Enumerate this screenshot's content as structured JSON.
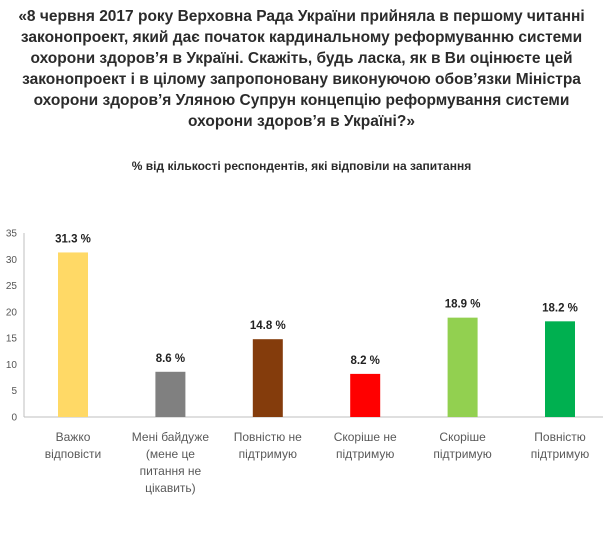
{
  "chart_data": {
    "type": "bar",
    "title": "«8 червня 2017 року Верховна Рада України прийняла в першому читанні законопроект, який дає початок кардинальному реформуванню системи охорони здоров’я в Україні. Скажіть, будь ласка, як в Ви оцінюєте цей законопроект і в цілому запропоновану виконуючою обов’язки Міністра охорони здоров’я Уляною Супрун концепцію реформування системи охорони здоров’я в Україні?»",
    "subtitle": "% від кількості респондентів, які відповіли на запитання",
    "categories": [
      [
        "Важко",
        "відповісти"
      ],
      [
        "Мені байдуже",
        "(мене це",
        "питання не",
        "цікавить)"
      ],
      [
        "Повністю не",
        "підтримую"
      ],
      [
        "Скоріше не",
        "підтримую"
      ],
      [
        "Скоріше",
        "підтримую"
      ],
      [
        "Повністю",
        "підтримую"
      ]
    ],
    "values": [
      31.3,
      8.6,
      14.8,
      8.2,
      18.9,
      18.2
    ],
    "data_labels": [
      "31.3 %",
      "8.6 %",
      "14.8 %",
      "8.2 %",
      "18.9 %",
      "18.2 %"
    ],
    "colors": [
      "#FFD966",
      "#808080",
      "#843C0C",
      "#FF0000",
      "#92D050",
      "#00B050"
    ],
    "ylim": [
      0,
      35
    ],
    "yticks": [
      0,
      5,
      10,
      15,
      20,
      25,
      30,
      35
    ],
    "grid": false
  }
}
